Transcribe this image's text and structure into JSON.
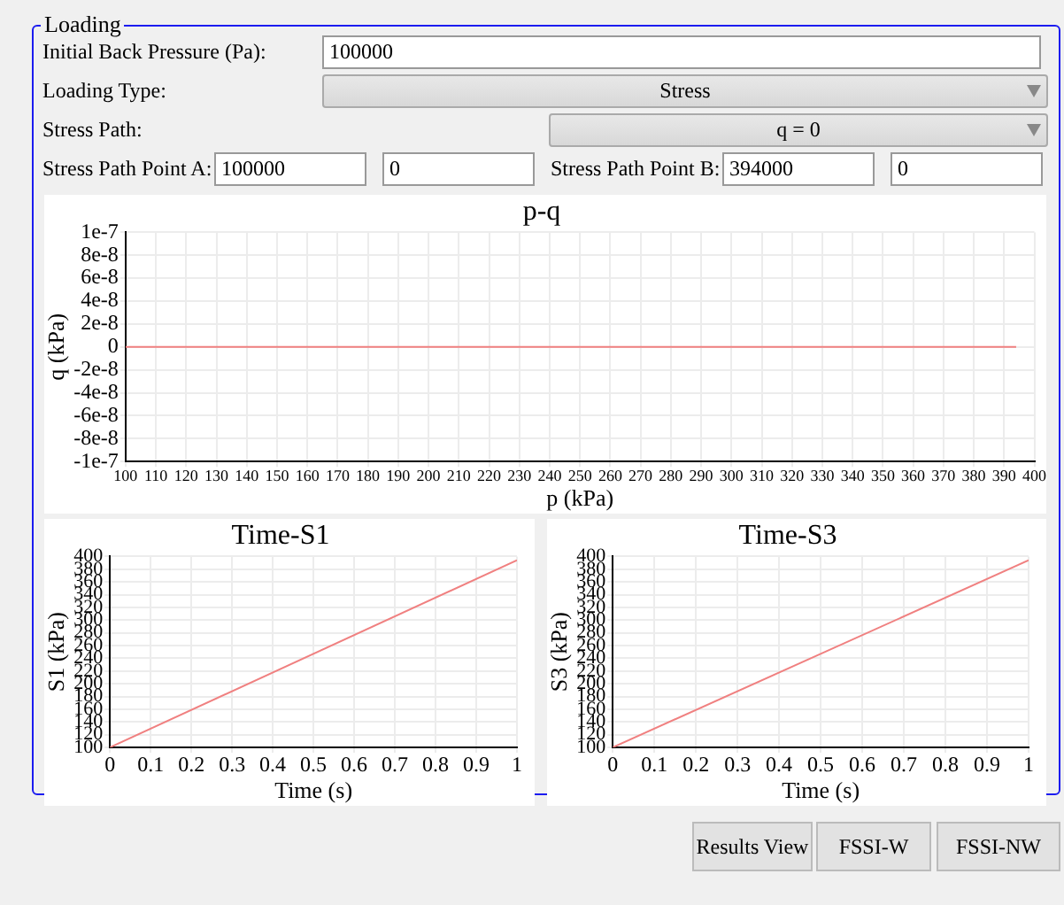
{
  "chart_data": [
    {
      "type": "other",
      "title": "Loading",
      "annotations": [
        "Initial Back Pressure (Pa):",
        "100000",
        "Loading Type:",
        "Stress",
        "Stress Path:",
        "q = 0",
        "Stress Path Point A:",
        "100000",
        "0",
        "Stress Path Point B:",
        "394000",
        "0",
        "Results View",
        "FSSI-W",
        "FSSI-NW"
      ]
    },
    {
      "type": "line",
      "title": "p-q",
      "xlabel": "p (kPa)",
      "ylabel": "q (kPa)",
      "color": "#f08080",
      "x": [
        100,
        394
      ],
      "values": [
        0,
        0
      ],
      "xlim": [
        100,
        400
      ],
      "ylim": [
        -1e-07,
        1e-07
      ],
      "xticks": [
        100,
        110,
        120,
        130,
        140,
        150,
        160,
        170,
        180,
        190,
        200,
        210,
        220,
        230,
        240,
        250,
        260,
        270,
        280,
        290,
        300,
        310,
        320,
        330,
        340,
        350,
        360,
        370,
        380,
        390,
        400
      ],
      "yticks": [
        {
          "value": -1e-07,
          "label": "-1e-7"
        },
        {
          "value": -8e-08,
          "label": "-8e-8"
        },
        {
          "value": -6e-08,
          "label": "-6e-8"
        },
        {
          "value": -4e-08,
          "label": "-4e-8"
        },
        {
          "value": -2e-08,
          "label": "-2e-8"
        },
        0,
        {
          "value": 2e-08,
          "label": "2e-8"
        },
        {
          "value": 4e-08,
          "label": "4e-8"
        },
        {
          "value": 6e-08,
          "label": "6e-8"
        },
        {
          "value": 8e-08,
          "label": "8e-8"
        },
        {
          "value": 1e-07,
          "label": "1e-7"
        }
      ],
      "grid": true,
      "marker": "none"
    },
    {
      "type": "line",
      "title": "Time-S1",
      "xlabel": "Time (s)",
      "ylabel": "S1 (kPa)",
      "color": "#f08080",
      "x": [
        0,
        1
      ],
      "values": [
        100,
        394
      ],
      "xlim": [
        0,
        1
      ],
      "ylim": [
        100,
        400
      ],
      "xticks": [
        0,
        0.1,
        0.2,
        0.3,
        0.4,
        0.5,
        0.6,
        0.7,
        0.8,
        0.9,
        1
      ],
      "yticks": [
        100,
        120,
        140,
        160,
        180,
        200,
        220,
        240,
        260,
        280,
        300,
        320,
        340,
        360,
        380,
        400
      ],
      "grid": true,
      "marker": "none"
    },
    {
      "type": "line",
      "title": "Time-S3",
      "xlabel": "Time (s)",
      "ylabel": "S3 (kPa)",
      "color": "#f08080",
      "x": [
        0,
        1
      ],
      "values": [
        100,
        394
      ],
      "xlim": [
        0,
        1
      ],
      "ylim": [
        100,
        400
      ],
      "xticks": [
        0,
        0.1,
        0.2,
        0.3,
        0.4,
        0.5,
        0.6,
        0.7,
        0.8,
        0.9,
        1
      ],
      "yticks": [
        100,
        120,
        140,
        160,
        180,
        200,
        220,
        240,
        260,
        280,
        300,
        320,
        340,
        360,
        380,
        400
      ],
      "grid": true,
      "marker": "none"
    }
  ]
}
